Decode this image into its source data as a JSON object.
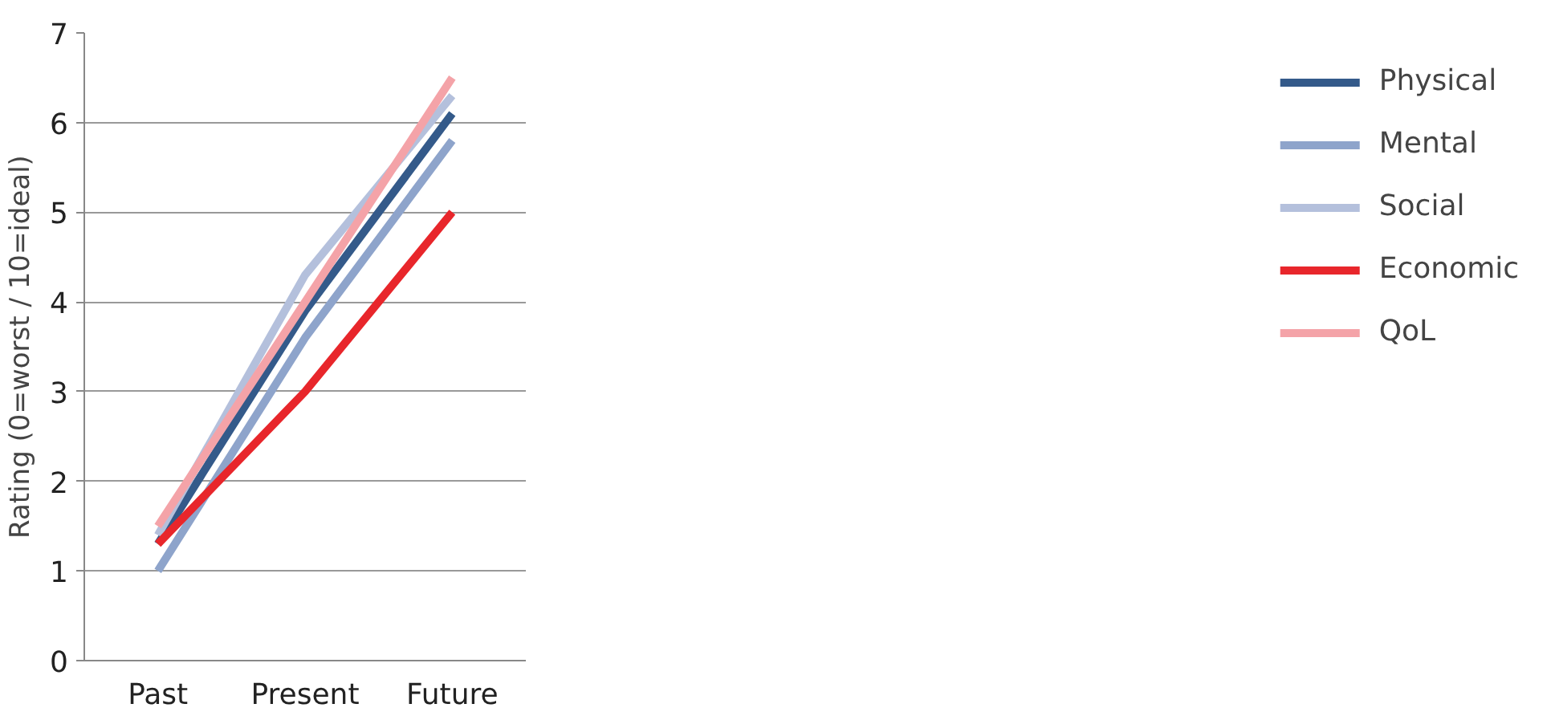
{
  "chart_data": {
    "type": "line",
    "ylabel": "Rating (0=worst / 10=ideal)",
    "categories": [
      "Past",
      "Present",
      "Future"
    ],
    "series": [
      {
        "name": "Physical",
        "color": "#345a8a",
        "values": [
          1.3,
          3.9,
          6.1
        ]
      },
      {
        "name": "Mental",
        "color": "#8ea4cb",
        "values": [
          1.0,
          3.6,
          5.8
        ]
      },
      {
        "name": "Social",
        "color": "#b4c0dc",
        "values": [
          1.4,
          4.3,
          6.3
        ]
      },
      {
        "name": "Economic",
        "color": "#e8262b",
        "values": [
          1.3,
          3.0,
          5.0
        ]
      },
      {
        "name": "QoL",
        "color": "#f4a3a8",
        "values": [
          1.5,
          4.0,
          6.5
        ]
      }
    ],
    "ylim": [
      0,
      7
    ],
    "yticks": [
      0,
      1,
      2,
      3,
      4,
      5,
      6,
      7
    ],
    "grid": "y",
    "legend": "right",
    "marker": "none",
    "line_style": "solid"
  }
}
